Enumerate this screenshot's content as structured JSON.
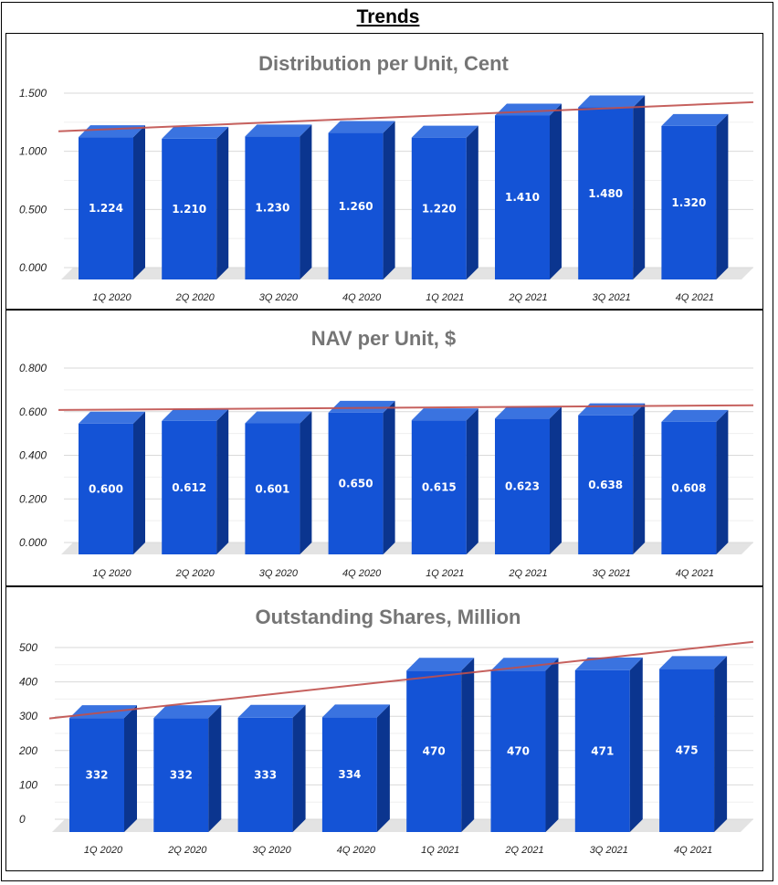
{
  "page": {
    "title": "Trends"
  },
  "chart_data": [
    {
      "type": "bar",
      "title": "Distribution per Unit, Cent",
      "categories": [
        "1Q 2020",
        "2Q 2020",
        "3Q 2020",
        "4Q 2020",
        "1Q 2021",
        "2Q 2021",
        "3Q 2021",
        "4Q 2021"
      ],
      "values": [
        1.224,
        1.21,
        1.23,
        1.26,
        1.22,
        1.41,
        1.48,
        1.32
      ],
      "value_labels": [
        "1.224",
        "1.210",
        "1.230",
        "1.260",
        "1.220",
        "1.410",
        "1.480",
        "1.320"
      ],
      "yticks": [
        "0.000",
        "0.500",
        "1.000",
        "1.500"
      ],
      "ylim": [
        0,
        1.5
      ],
      "trendline": true,
      "colors": {
        "bar": "#1453d6",
        "bar_top": "#3a73e0",
        "bar_side": "#0b358f",
        "trend": "#c0504d"
      }
    },
    {
      "type": "bar",
      "title": "NAV per Unit, $",
      "categories": [
        "1Q 2020",
        "2Q 2020",
        "3Q 2020",
        "4Q 2020",
        "1Q 2021",
        "2Q 2021",
        "3Q 2021",
        "4Q 2021"
      ],
      "values": [
        0.6,
        0.612,
        0.601,
        0.65,
        0.615,
        0.623,
        0.638,
        0.608
      ],
      "value_labels": [
        "0.600",
        "0.612",
        "0.601",
        "0.650",
        "0.615",
        "0.623",
        "0.638",
        "0.608"
      ],
      "yticks": [
        "0.000",
        "0.200",
        "0.400",
        "0.600",
        "0.800"
      ],
      "ylim": [
        0,
        0.8
      ],
      "trendline": true,
      "colors": {
        "bar": "#1453d6",
        "bar_top": "#3a73e0",
        "bar_side": "#0b358f",
        "trend": "#c0504d"
      }
    },
    {
      "type": "bar",
      "title": "Outstanding Shares, Million",
      "categories": [
        "1Q 2020",
        "2Q 2020",
        "3Q 2020",
        "4Q 2020",
        "1Q 2021",
        "2Q 2021",
        "3Q 2021",
        "4Q 2021"
      ],
      "values": [
        332,
        332,
        333,
        334,
        470,
        470,
        471,
        475
      ],
      "value_labels": [
        "332",
        "332",
        "333",
        "334",
        "470",
        "470",
        "471",
        "475"
      ],
      "yticks": [
        "0",
        "100",
        "200",
        "300",
        "400",
        "500"
      ],
      "ylim": [
        0,
        500
      ],
      "trendline": true,
      "colors": {
        "bar": "#1453d6",
        "bar_top": "#3a73e0",
        "bar_side": "#0b358f",
        "trend": "#c0504d"
      }
    }
  ]
}
